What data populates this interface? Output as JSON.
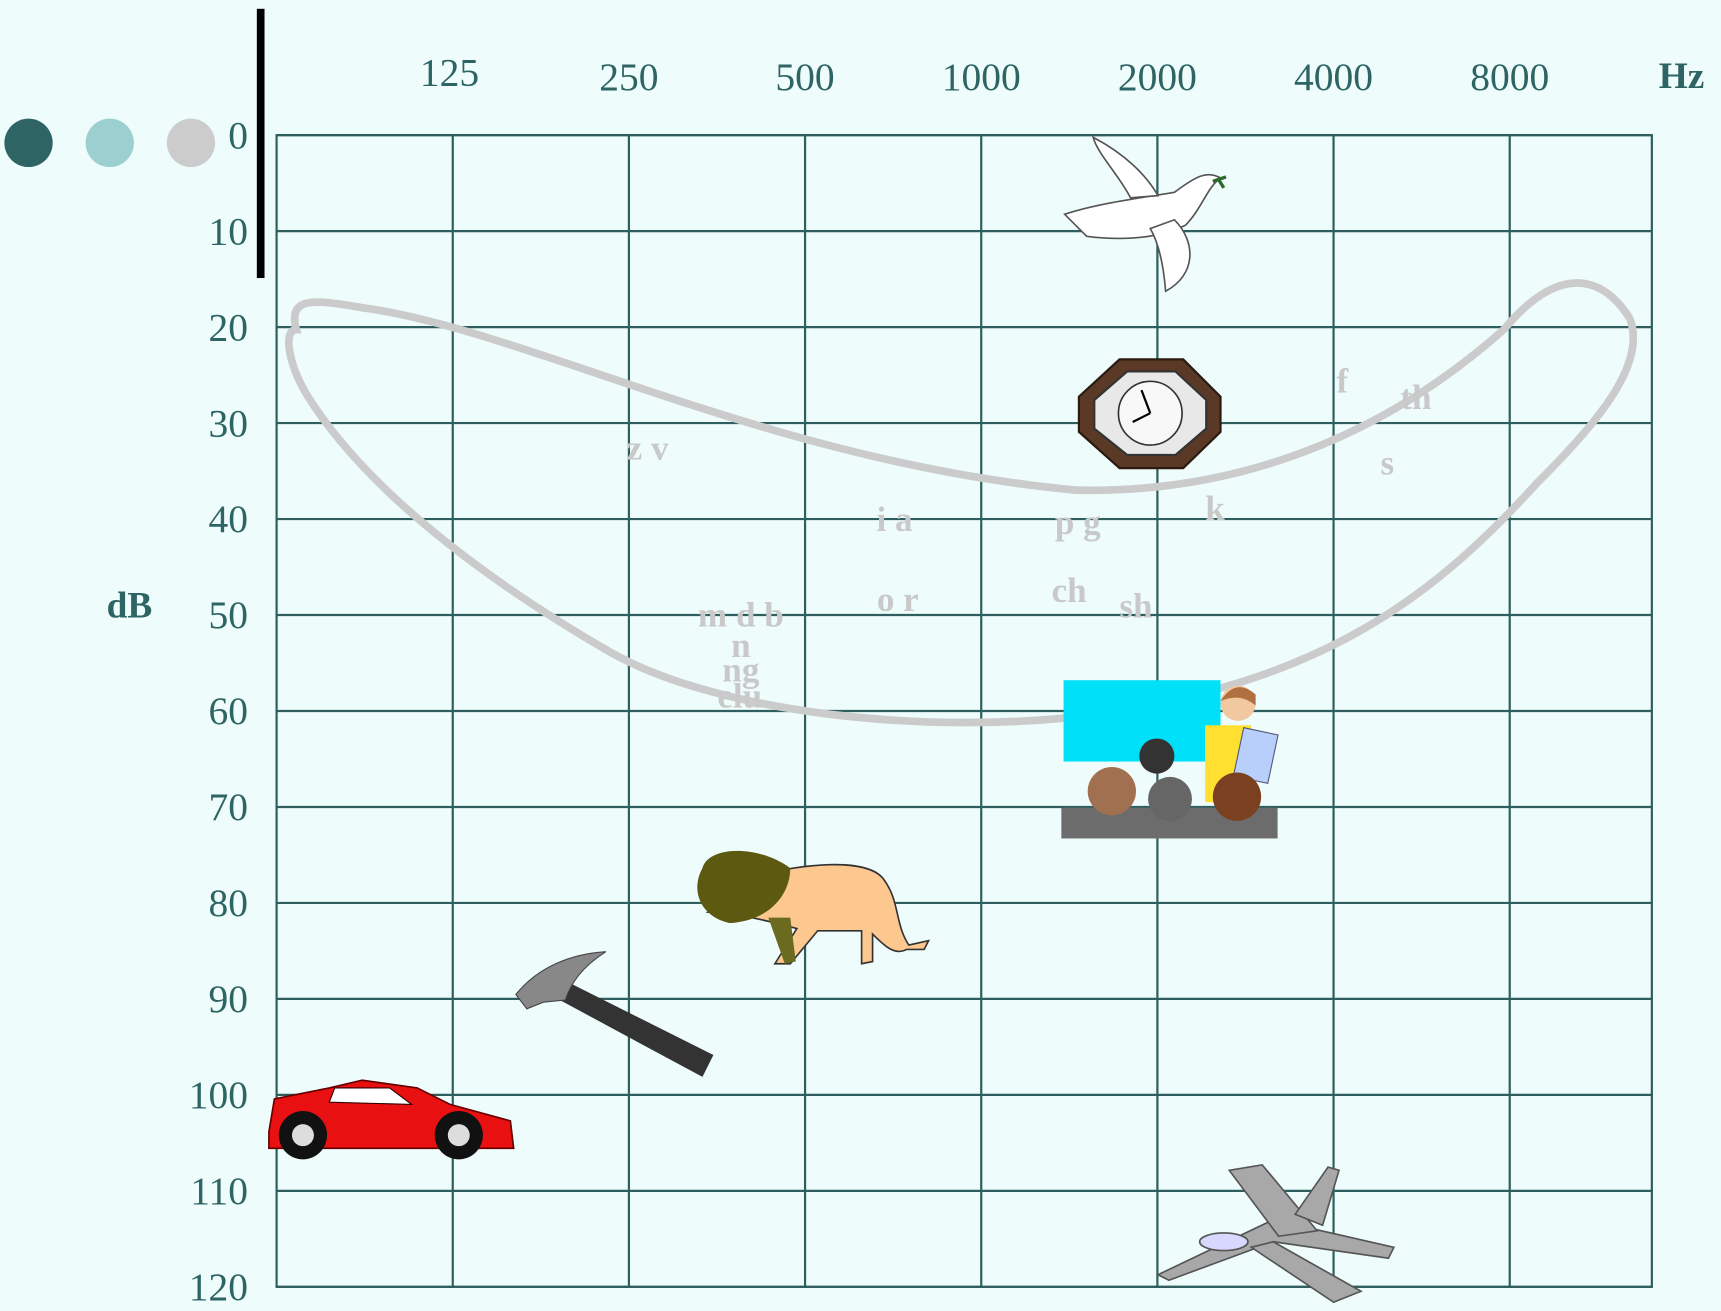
{
  "x_axis": {
    "unit": "Hz",
    "ticks": [
      "125",
      "250",
      "500",
      "1000",
      "2000",
      "4000",
      "8000"
    ]
  },
  "y_axis": {
    "unit": "dB",
    "ticks": [
      0,
      10,
      20,
      30,
      40,
      50,
      60,
      70,
      80,
      90,
      100,
      110,
      120
    ]
  },
  "phonemes": [
    "z v",
    "i a",
    "p g",
    "k",
    "f",
    "th",
    "s",
    "o r",
    "ch",
    "sh",
    "m d b",
    "n",
    "ng",
    "elu"
  ]
}
